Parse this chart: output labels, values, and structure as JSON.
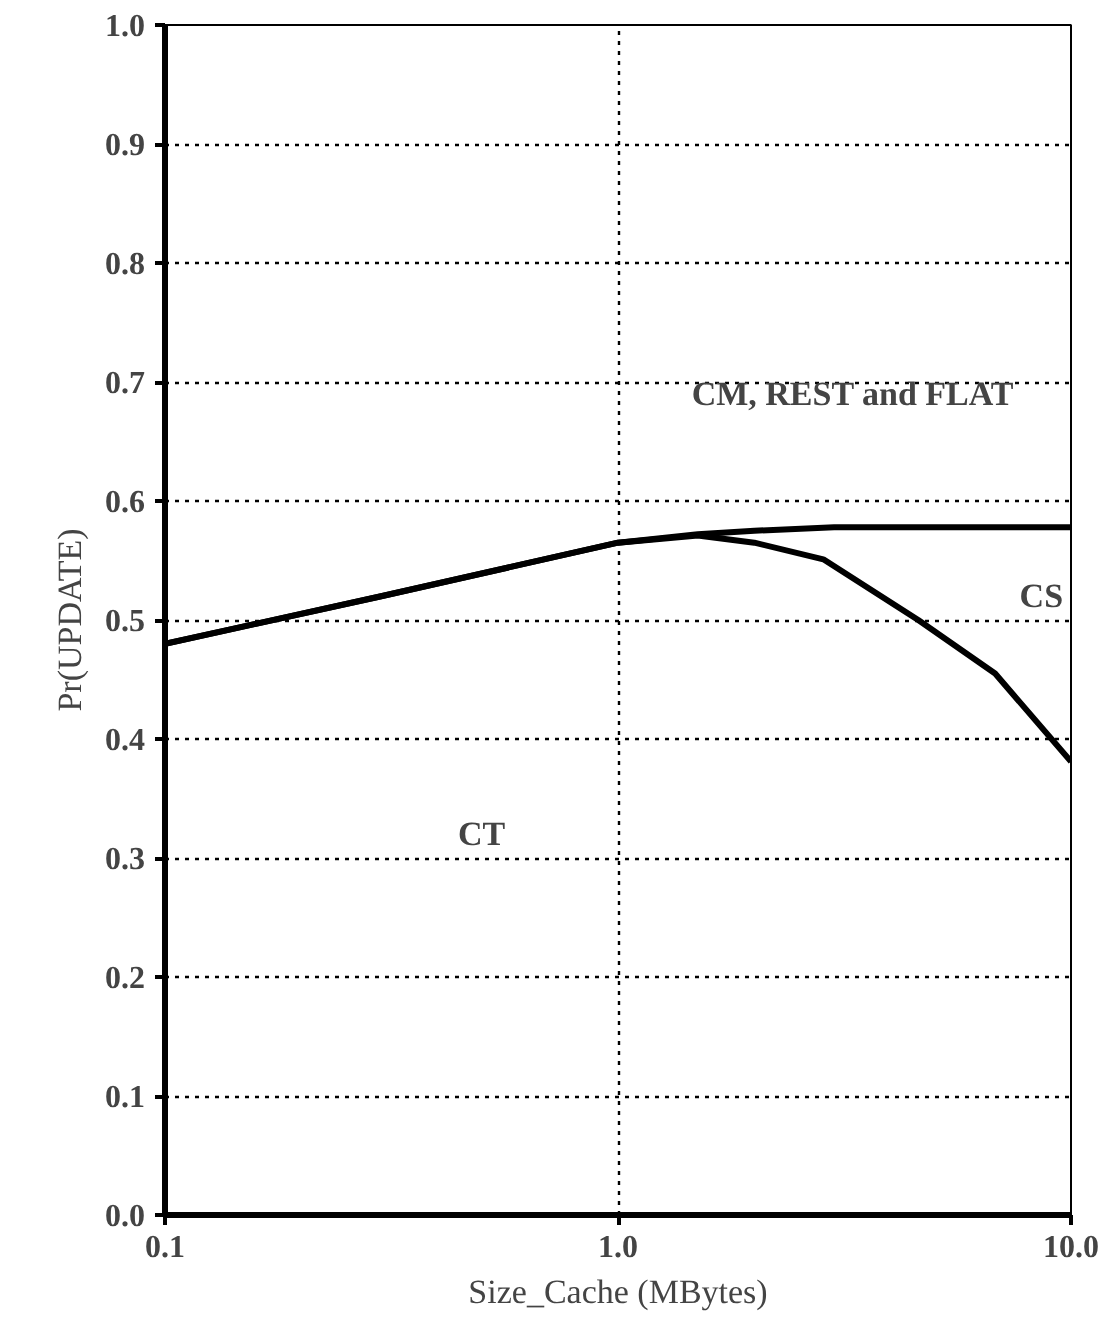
{
  "chart_data": {
    "type": "line",
    "xlabel": "Size_Cache (MBytes)",
    "ylabel": "Pr(UPDATE)",
    "log": "x",
    "xlim": [
      0.1,
      10
    ],
    "ylim": [
      0,
      1
    ],
    "xticks": [
      {
        "value": 0.1,
        "label": "0.1"
      },
      {
        "value": 1,
        "label": "1.0"
      },
      {
        "value": 10,
        "label": "10.0"
      }
    ],
    "yticks": [
      {
        "value": 0,
        "label": "0.0"
      },
      {
        "value": 0.1,
        "label": "0.1"
      },
      {
        "value": 0.2,
        "label": "0.2"
      },
      {
        "value": 0.3,
        "label": "0.3"
      },
      {
        "value": 0.4,
        "label": "0.4"
      },
      {
        "value": 0.5,
        "label": "0.5"
      },
      {
        "value": 0.6,
        "label": "0.6"
      },
      {
        "value": 0.7,
        "label": "0.7"
      },
      {
        "value": 0.8,
        "label": "0.8"
      },
      {
        "value": 0.9,
        "label": "0.9"
      },
      {
        "value": 1,
        "label": "1.0"
      }
    ],
    "grid": true,
    "line_style": "solid",
    "series": [
      {
        "color": "#000000",
        "x": [
          0.1,
          0.3,
          1.0,
          1.5,
          2.0,
          3.0,
          5.0,
          10.0
        ],
        "values": [
          0.48,
          0.52,
          0.565,
          0.572,
          0.575,
          0.578,
          0.578,
          0.578
        ]
      },
      {
        "color": "#000000",
        "x": [
          0.1,
          0.3,
          1.0,
          1.5,
          2.0,
          2.84,
          4.6,
          6.8,
          10.0
        ],
        "values": [
          0.48,
          0.52,
          0.565,
          0.571,
          0.565,
          0.551,
          0.5,
          0.455,
          0.381
        ]
      }
    ],
    "annotations": [
      "CM, REST and FLAT",
      "CS",
      "CT"
    ]
  }
}
